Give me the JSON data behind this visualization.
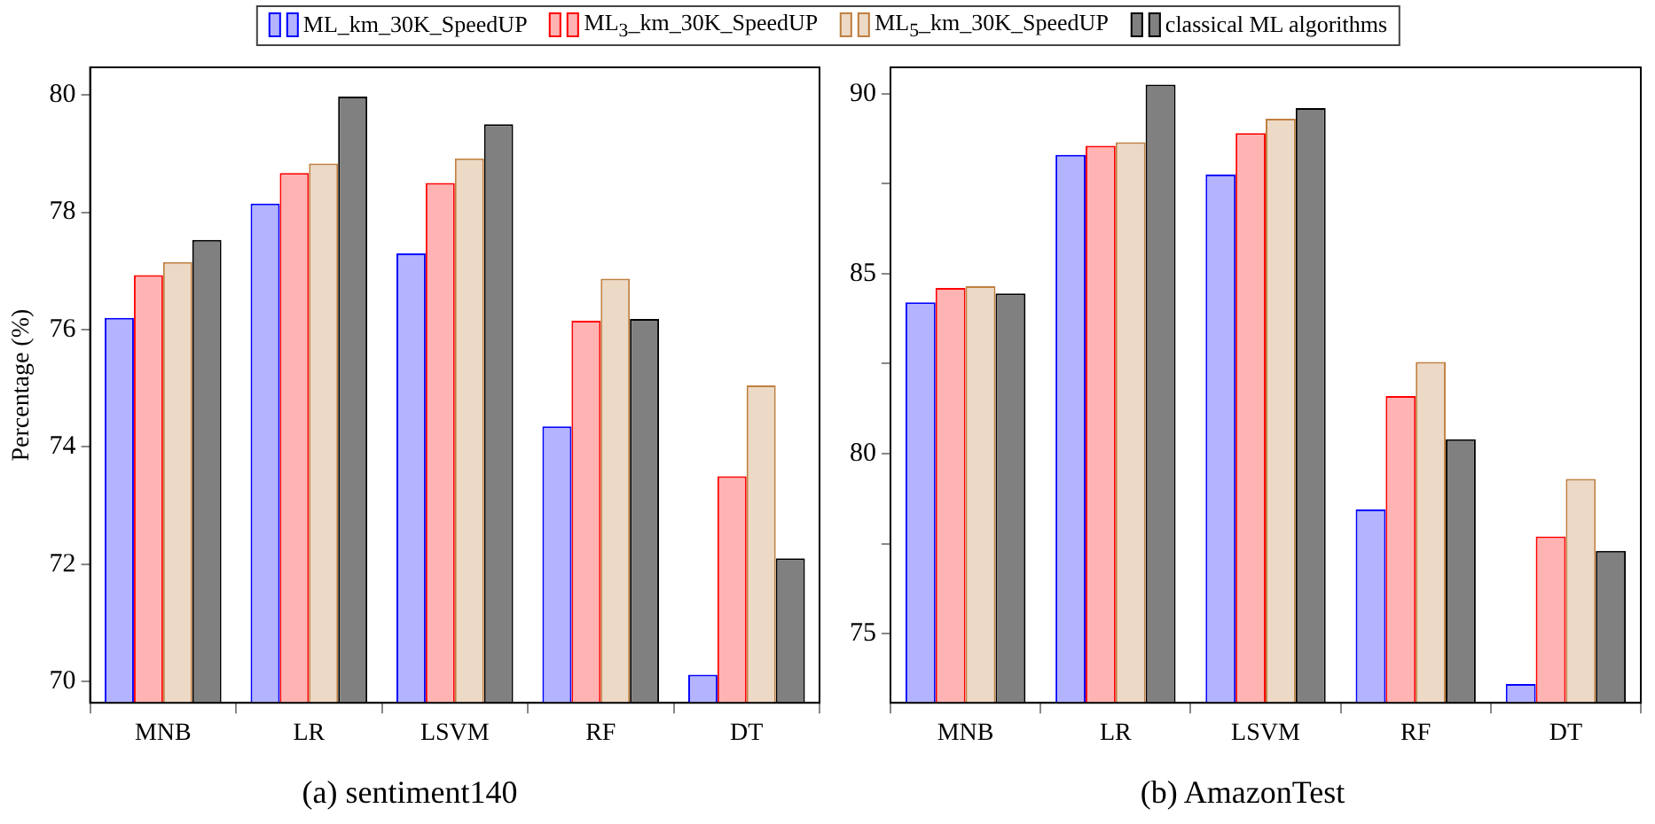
{
  "chart_data": [
    {
      "type": "bar",
      "title": "(a) sentiment140",
      "ylabel": "Percentage (%)",
      "categories": [
        "MNB",
        "LR",
        "LSVM",
        "RF",
        "DT"
      ],
      "series": [
        {
          "name": "ML_km_30K_SpeedUP",
          "color": "#b3b3ff",
          "values": [
            76.2,
            78.15,
            77.3,
            74.35,
            70.12
          ]
        },
        {
          "name": "ML$_{3}$_km_30K_SpeedUP",
          "color": "#ffb3b3",
          "values": [
            76.93,
            78.67,
            78.5,
            76.15,
            73.5
          ]
        },
        {
          "name": "ML$_{5}$_km_30K_SpeedUP",
          "color": "#ecd9c6",
          "values": [
            77.15,
            78.83,
            78.92,
            76.87,
            75.05
          ]
        },
        {
          "name": "classical ML algorithms",
          "color": "#808080",
          "values": [
            77.53,
            79.97,
            79.5,
            76.18,
            72.1
          ]
        }
      ],
      "ylim": [
        69.64,
        80.47
      ],
      "yticks": [
        70,
        72,
        74,
        76,
        78,
        80
      ],
      "legend": "top",
      "grid": false
    },
    {
      "type": "bar",
      "title": "(b) AmazonTest",
      "categories": [
        "MNB",
        "LR",
        "LSVM",
        "RF",
        "DT"
      ],
      "series": [
        {
          "color": "#b3b3ff",
          "values": [
            84.2,
            88.3,
            87.75,
            78.45,
            73.6
          ]
        },
        {
          "color": "#ffb3b3",
          "values": [
            84.6,
            88.55,
            88.9,
            81.6,
            77.7
          ]
        },
        {
          "color": "#ecd9c6",
          "values": [
            84.65,
            88.65,
            89.3,
            82.55,
            79.3
          ]
        },
        {
          "color": "#808080",
          "values": [
            84.45,
            90.25,
            89.6,
            80.4,
            77.3
          ]
        }
      ],
      "ylim": [
        73.08,
        90.73
      ],
      "yticks": [
        {
          "value": 75,
          "label": "75"
        },
        {
          "value": 77.5,
          "label": null
        },
        {
          "value": 80,
          "label": "80"
        },
        {
          "value": 82.5,
          "label": null
        },
        {
          "value": 85,
          "label": "85"
        },
        {
          "value": 87.5,
          "label": null
        },
        {
          "value": 90,
          "label": "90"
        }
      ],
      "grid": false
    }
  ]
}
